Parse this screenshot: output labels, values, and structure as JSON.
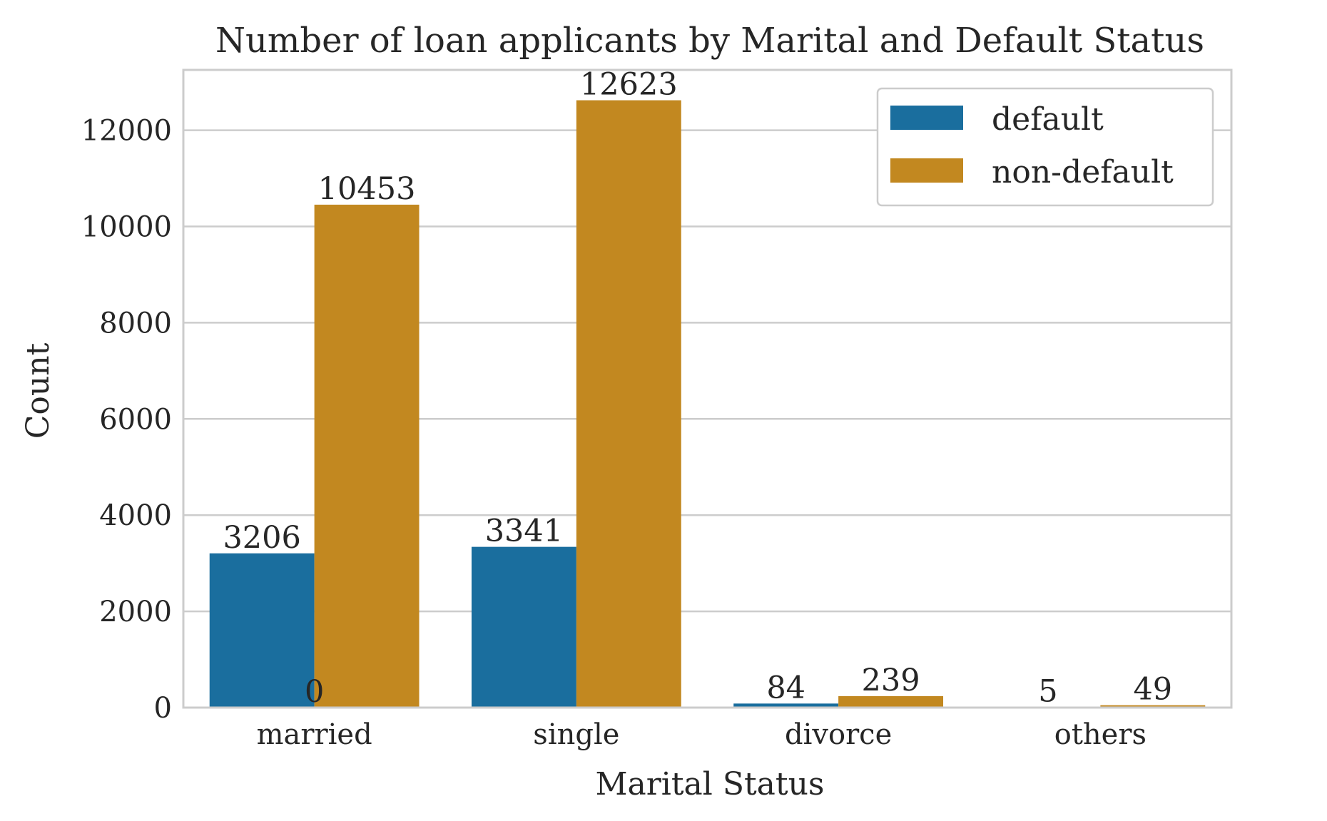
{
  "chart_data": {
    "type": "bar",
    "title": "Number of loan applicants by Marital and Default Status",
    "xlabel": "Marital Status",
    "ylabel": "Count",
    "categories": [
      "married",
      "single",
      "divorce",
      "others"
    ],
    "series": [
      {
        "name": "default",
        "color": "#1a6e9e",
        "values": [
          3206,
          3341,
          84,
          5
        ]
      },
      {
        "name": "non-default",
        "color": "#c28820",
        "values": [
          10453,
          12623,
          239,
          49
        ]
      }
    ],
    "bar_labels": [
      [
        "3206",
        "3341",
        "84",
        "5"
      ],
      [
        "10453",
        "12623",
        "239",
        "49"
      ]
    ],
    "extra_annotation": "0",
    "ylim": [
      0,
      13254
    ],
    "yticks": [
      0,
      2000,
      4000,
      6000,
      8000,
      10000,
      12000
    ],
    "grid": "horizontal",
    "legend_position": "top-right"
  }
}
